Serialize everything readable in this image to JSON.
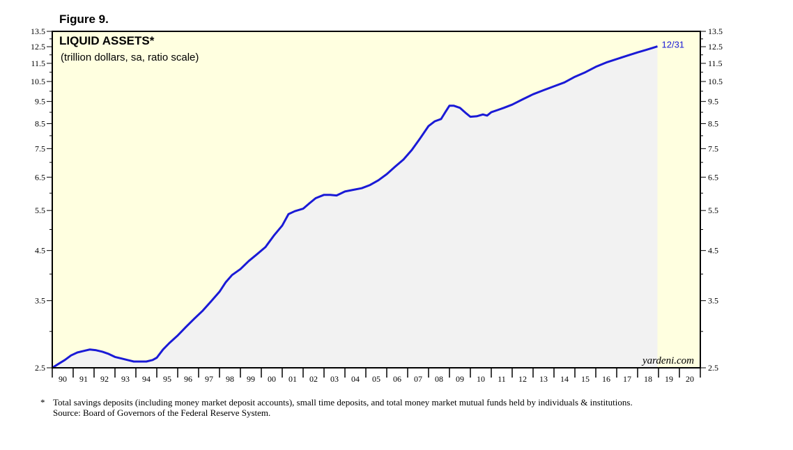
{
  "figure_label": "Figure 9.",
  "footnote": {
    "marker": "*",
    "text": "Total savings deposits (including money market deposit accounts), small time deposits, and total money market mutual funds held by individuals & institutions.",
    "source": "Source: Board of Governors of the Federal Reserve System."
  },
  "colors": {
    "plot_bg": "#ffffe0",
    "area_fill": "#f2f2f2",
    "line": "#1a1ad6",
    "axis": "#000000"
  },
  "chart_data": {
    "type": "line",
    "title": "LIQUID ASSETS*",
    "subtitle": "(trillion dollars, sa, ratio scale)",
    "y_scale": "log",
    "ylim": [
      2.5,
      13.5
    ],
    "xlim": [
      1990.0,
      2021.0
    ],
    "y_ticks": [
      "2.5",
      "3.5",
      "4.5",
      "5.5",
      "6.5",
      "7.5",
      "8.5",
      "9.5",
      "10.5",
      "11.5",
      "12.5",
      "13.5"
    ],
    "x_tick_labels": [
      "90",
      "91",
      "92",
      "93",
      "94",
      "95",
      "96",
      "97",
      "98",
      "99",
      "00",
      "01",
      "02",
      "03",
      "04",
      "05",
      "06",
      "07",
      "08",
      "09",
      "10",
      "11",
      "12",
      "13",
      "14",
      "15",
      "16",
      "17",
      "18",
      "19",
      "20"
    ],
    "last_value_label": "12/31",
    "watermark": "yardeni.com",
    "series": [
      {
        "name": "Liquid Assets",
        "x": [
          1990.0,
          1990.3,
          1990.6,
          1990.9,
          1991.2,
          1991.5,
          1991.8,
          1992.1,
          1992.4,
          1992.7,
          1993.0,
          1993.3,
          1993.6,
          1993.9,
          1994.2,
          1994.5,
          1994.8,
          1995.0,
          1995.3,
          1995.6,
          1996.0,
          1996.4,
          1996.8,
          1997.2,
          1997.6,
          1998.0,
          1998.3,
          1998.6,
          1999.0,
          1999.4,
          1999.8,
          2000.2,
          2000.6,
          2001.0,
          2001.3,
          2001.6,
          2002.0,
          2002.3,
          2002.6,
          2003.0,
          2003.3,
          2003.6,
          2004.0,
          2004.4,
          2004.8,
          2005.2,
          2005.6,
          2006.0,
          2006.4,
          2006.8,
          2007.2,
          2007.6,
          2008.0,
          2008.3,
          2008.6,
          2008.8,
          2009.0,
          2009.2,
          2009.5,
          2009.8,
          2010.0,
          2010.3,
          2010.6,
          2010.8,
          2011.0,
          2011.3,
          2011.6,
          2012.0,
          2012.5,
          2013.0,
          2013.5,
          2014.0,
          2014.5,
          2015.0,
          2015.5,
          2016.0,
          2016.5,
          2017.0,
          2017.5,
          2018.0,
          2018.4,
          2018.7,
          2018.95
        ],
        "values": [
          2.5,
          2.55,
          2.6,
          2.66,
          2.7,
          2.72,
          2.74,
          2.73,
          2.71,
          2.68,
          2.64,
          2.62,
          2.6,
          2.58,
          2.58,
          2.58,
          2.6,
          2.63,
          2.74,
          2.83,
          2.94,
          3.07,
          3.2,
          3.33,
          3.49,
          3.66,
          3.84,
          3.98,
          4.1,
          4.27,
          4.42,
          4.58,
          4.85,
          5.1,
          5.4,
          5.48,
          5.55,
          5.7,
          5.85,
          5.95,
          5.95,
          5.93,
          6.05,
          6.1,
          6.15,
          6.25,
          6.4,
          6.6,
          6.85,
          7.1,
          7.45,
          7.9,
          8.4,
          8.6,
          8.7,
          9.0,
          9.3,
          9.3,
          9.2,
          8.95,
          8.8,
          8.82,
          8.9,
          8.85,
          9.0,
          9.1,
          9.2,
          9.35,
          9.6,
          9.85,
          10.05,
          10.25,
          10.45,
          10.75,
          11.0,
          11.3,
          11.55,
          11.75,
          11.95,
          12.15,
          12.3,
          12.42,
          12.52
        ]
      }
    ]
  }
}
